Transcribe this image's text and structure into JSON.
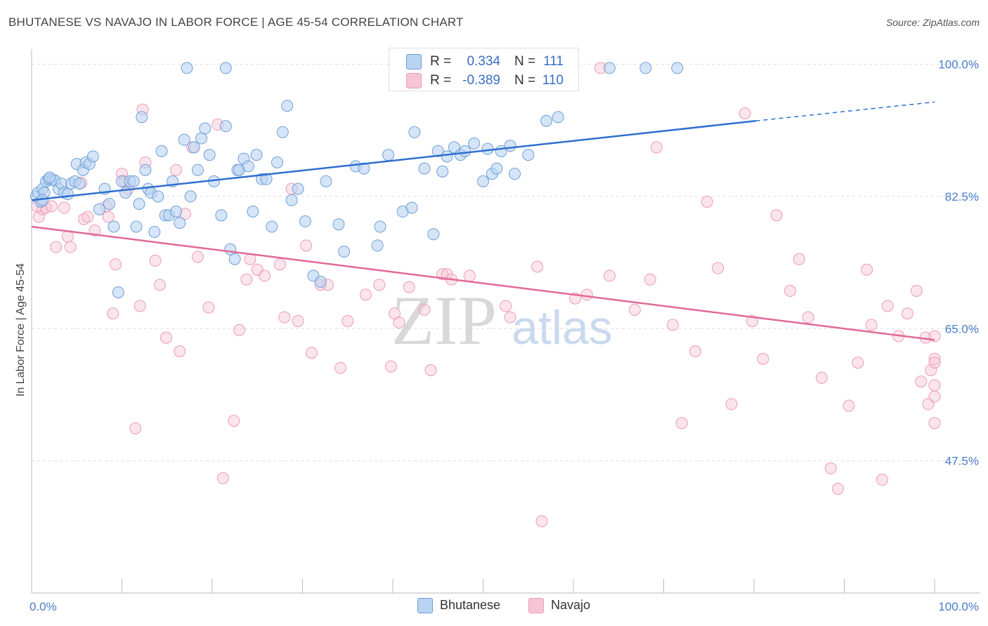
{
  "header": {
    "title": "BHUTANESE VS NAVAJO IN LABOR FORCE | AGE 45-54 CORRELATION CHART",
    "source": "Source: ZipAtlas.com"
  },
  "legend": {
    "rows": [
      {
        "r_label": "R =",
        "r_value": "0.334",
        "n_label": "N =",
        "n_value": "111"
      },
      {
        "r_label": "R =",
        "r_value": "-0.389",
        "n_label": "N =",
        "n_value": "110"
      }
    ]
  },
  "bottom_legend": [
    "Bhutanese",
    "Navajo"
  ],
  "colors": {
    "blue_fill": "#b9d3f2",
    "blue_stroke": "#6f9fd8",
    "blue_line": "#2f6fcf",
    "pink_fill": "#f6c5d5",
    "pink_stroke": "#ee9ab6",
    "pink_line": "#e0689a",
    "tick_text": "#4a7cc9",
    "grid": "#dddddd"
  },
  "watermark": {
    "zip": "ZIP",
    "atlas": "atlas"
  },
  "chart_data": {
    "type": "scatter",
    "title": "BHUTANESE VS NAVAJO IN LABOR FORCE | AGE 45-54 CORRELATION CHART",
    "xlabel": "",
    "ylabel": "In Labor Force | Age 45-54",
    "xlim": [
      0,
      100
    ],
    "ylim": [
      30,
      102
    ],
    "x_tick_labels": [
      "0.0%",
      "100.0%"
    ],
    "y_ticks": [
      47.5,
      65.0,
      82.5,
      100.0
    ],
    "y_tick_labels": [
      "47.5%",
      "65.0%",
      "82.5%",
      "100.0%"
    ],
    "grid": true,
    "legend_position": "top-center",
    "series": [
      {
        "name": "Bhutanese",
        "color": "#6f9fd8",
        "R": 0.334,
        "N": 111,
        "trend": {
          "x": [
            0,
            80.2
          ],
          "y": [
            82.0,
            92.5
          ],
          "dashed_to": [
            100,
            95.0
          ]
        },
        "points": [
          [
            0.5,
            82.5
          ],
          [
            0.7,
            83.0
          ],
          [
            1.0,
            81.8
          ],
          [
            1.2,
            83.5
          ],
          [
            1.4,
            83.0
          ],
          [
            1.6,
            84.5
          ],
          [
            1.9,
            84.8
          ],
          [
            2.3,
            84.7
          ],
          [
            2.6,
            84.6
          ],
          [
            3.0,
            83.5
          ],
          [
            3.3,
            84.2
          ],
          [
            3.6,
            83.0
          ],
          [
            4.0,
            82.8
          ],
          [
            4.4,
            84.2
          ],
          [
            4.8,
            84.5
          ],
          [
            5.0,
            86.8
          ],
          [
            5.3,
            84.2
          ],
          [
            5.7,
            86.0
          ],
          [
            6.0,
            87.0
          ],
          [
            6.4,
            86.8
          ],
          [
            6.8,
            87.8
          ],
          [
            7.5,
            80.8
          ],
          [
            8.1,
            83.5
          ],
          [
            8.6,
            81.5
          ],
          [
            9.1,
            78.5
          ],
          [
            9.6,
            69.8
          ],
          [
            10.0,
            84.5
          ],
          [
            10.4,
            83.0
          ],
          [
            10.9,
            84.5
          ],
          [
            11.3,
            84.5
          ],
          [
            11.6,
            78.5
          ],
          [
            11.9,
            81.5
          ],
          [
            12.2,
            93.0
          ],
          [
            12.6,
            86.0
          ],
          [
            12.9,
            83.5
          ],
          [
            13.2,
            83.0
          ],
          [
            13.6,
            77.8
          ],
          [
            14.0,
            82.5
          ],
          [
            14.4,
            88.5
          ],
          [
            14.8,
            80.0
          ],
          [
            15.2,
            80.0
          ],
          [
            15.6,
            84.5
          ],
          [
            16.0,
            80.5
          ],
          [
            16.4,
            79.0
          ],
          [
            16.9,
            90.0
          ],
          [
            17.2,
            99.5
          ],
          [
            17.6,
            82.5
          ],
          [
            18.0,
            89.0
          ],
          [
            18.4,
            86.0
          ],
          [
            18.8,
            90.2
          ],
          [
            19.2,
            91.5
          ],
          [
            19.7,
            88.0
          ],
          [
            20.2,
            84.5
          ],
          [
            21.0,
            80.0
          ],
          [
            21.5,
            91.8
          ],
          [
            22.0,
            75.5
          ],
          [
            22.5,
            74.2
          ],
          [
            22.8,
            86.0
          ],
          [
            23.0,
            86.0
          ],
          [
            23.5,
            87.5
          ],
          [
            24.0,
            86.5
          ],
          [
            24.5,
            80.5
          ],
          [
            24.9,
            88.0
          ],
          [
            25.5,
            84.8
          ],
          [
            26.0,
            84.8
          ],
          [
            26.6,
            78.5
          ],
          [
            27.2,
            87.0
          ],
          [
            27.8,
            91.0
          ],
          [
            28.3,
            94.5
          ],
          [
            28.8,
            82.0
          ],
          [
            29.5,
            83.5
          ],
          [
            30.3,
            79.2
          ],
          [
            31.2,
            72.0
          ],
          [
            32.0,
            71.2
          ],
          [
            32.6,
            84.5
          ],
          [
            34.0,
            78.8
          ],
          [
            34.6,
            75.2
          ],
          [
            35.9,
            86.5
          ],
          [
            36.8,
            86.2
          ],
          [
            38.3,
            76.0
          ],
          [
            38.6,
            78.5
          ],
          [
            39.5,
            88.0
          ],
          [
            41.1,
            80.5
          ],
          [
            42.1,
            81.0
          ],
          [
            42.4,
            91.0
          ],
          [
            43.5,
            86.2
          ],
          [
            44.5,
            77.5
          ],
          [
            45.0,
            88.5
          ],
          [
            45.5,
            85.8
          ],
          [
            46.0,
            87.8
          ],
          [
            46.8,
            89.0
          ],
          [
            47.5,
            88.0
          ],
          [
            48.0,
            88.5
          ],
          [
            49.0,
            89.5
          ],
          [
            50.0,
            84.5
          ],
          [
            50.5,
            88.8
          ],
          [
            51.0,
            85.5
          ],
          [
            51.5,
            86.2
          ],
          [
            52.0,
            88.5
          ],
          [
            53.0,
            89.2
          ],
          [
            55.0,
            88.0
          ],
          [
            57.0,
            92.5
          ],
          [
            58.3,
            93.0
          ],
          [
            42.0,
            99.5
          ],
          [
            21.5,
            99.5
          ],
          [
            64.0,
            99.5
          ],
          [
            68.0,
            99.5
          ],
          [
            71.5,
            99.5
          ],
          [
            1.2,
            82.0
          ],
          [
            2.0,
            85.0
          ],
          [
            53.5,
            85.5
          ]
        ]
      },
      {
        "name": "Navajo",
        "color": "#ee9ab6",
        "R": -0.389,
        "N": 110,
        "trend": {
          "x": [
            0,
            100
          ],
          "y": [
            78.5,
            63.5
          ]
        },
        "points": [
          [
            0.6,
            81.2
          ],
          [
            0.8,
            79.8
          ],
          [
            1.2,
            80.8
          ],
          [
            1.6,
            81.0
          ],
          [
            2.2,
            81.2
          ],
          [
            2.7,
            75.8
          ],
          [
            3.6,
            81.0
          ],
          [
            4.0,
            77.2
          ],
          [
            4.3,
            75.8
          ],
          [
            5.5,
            84.3
          ],
          [
            5.8,
            79.5
          ],
          [
            6.2,
            79.8
          ],
          [
            7.0,
            78.0
          ],
          [
            8.3,
            81.2
          ],
          [
            8.5,
            79.8
          ],
          [
            9.0,
            67.0
          ],
          [
            9.3,
            73.5
          ],
          [
            10.0,
            85.5
          ],
          [
            10.3,
            84.5
          ],
          [
            10.7,
            83.5
          ],
          [
            11.5,
            51.8
          ],
          [
            12.0,
            68.0
          ],
          [
            12.3,
            94.0
          ],
          [
            12.6,
            87.0
          ],
          [
            13.7,
            74.0
          ],
          [
            14.2,
            70.8
          ],
          [
            14.9,
            63.8
          ],
          [
            16.0,
            86.0
          ],
          [
            16.4,
            62.0
          ],
          [
            17.0,
            80.2
          ],
          [
            17.8,
            89.0
          ],
          [
            18.4,
            74.5
          ],
          [
            19.6,
            67.8
          ],
          [
            20.6,
            92.0
          ],
          [
            21.2,
            45.2
          ],
          [
            22.4,
            52.8
          ],
          [
            23.0,
            64.8
          ],
          [
            23.8,
            71.5
          ],
          [
            24.2,
            74.2
          ],
          [
            25.0,
            72.8
          ],
          [
            25.8,
            72.0
          ],
          [
            27.5,
            73.5
          ],
          [
            28.0,
            66.5
          ],
          [
            28.8,
            83.5
          ],
          [
            29.5,
            66.0
          ],
          [
            30.4,
            76.0
          ],
          [
            31.0,
            61.8
          ],
          [
            32.0,
            70.8
          ],
          [
            32.8,
            70.8
          ],
          [
            34.2,
            59.8
          ],
          [
            35.0,
            66.0
          ],
          [
            37.0,
            69.5
          ],
          [
            38.5,
            70.8
          ],
          [
            39.8,
            60.0
          ],
          [
            40.2,
            67.0
          ],
          [
            40.7,
            65.8
          ],
          [
            41.8,
            70.5
          ],
          [
            43.5,
            67.5
          ],
          [
            44.2,
            59.5
          ],
          [
            45.5,
            72.2
          ],
          [
            46.0,
            72.2
          ],
          [
            46.5,
            71.5
          ],
          [
            48.5,
            72.0
          ],
          [
            50.0,
            99.5
          ],
          [
            52.5,
            68.0
          ],
          [
            53.0,
            66.5
          ],
          [
            56.0,
            73.2
          ],
          [
            60.2,
            69.0
          ],
          [
            61.5,
            69.5
          ],
          [
            63.0,
            99.5
          ],
          [
            64.0,
            72.0
          ],
          [
            66.8,
            67.5
          ],
          [
            68.5,
            71.5
          ],
          [
            69.2,
            89.0
          ],
          [
            71.0,
            65.5
          ],
          [
            72.0,
            52.5
          ],
          [
            73.5,
            62.0
          ],
          [
            74.8,
            81.8
          ],
          [
            76.0,
            73.0
          ],
          [
            77.5,
            55.0
          ],
          [
            79.0,
            93.5
          ],
          [
            79.8,
            66.0
          ],
          [
            81.0,
            61.0
          ],
          [
            82.5,
            80.0
          ],
          [
            84.0,
            70.0
          ],
          [
            85.0,
            74.2
          ],
          [
            86.0,
            66.5
          ],
          [
            87.5,
            58.5
          ],
          [
            88.5,
            46.5
          ],
          [
            89.3,
            43.8
          ],
          [
            90.5,
            54.8
          ],
          [
            91.5,
            60.5
          ],
          [
            92.5,
            72.8
          ],
          [
            93.0,
            65.5
          ],
          [
            94.2,
            45.0
          ],
          [
            94.8,
            68.0
          ],
          [
            96.0,
            64.0
          ],
          [
            97.0,
            67.0
          ],
          [
            98.0,
            70.0
          ],
          [
            98.5,
            58.0
          ],
          [
            99.0,
            63.8
          ],
          [
            99.3,
            55.0
          ],
          [
            99.6,
            59.5
          ],
          [
            100.0,
            61.0
          ],
          [
            100.4,
            56.0
          ],
          [
            100.8,
            52.5
          ],
          [
            101.0,
            64.0
          ],
          [
            101.4,
            60.5
          ],
          [
            101.8,
            57.5
          ],
          [
            56.5,
            39.5
          ]
        ]
      }
    ]
  }
}
